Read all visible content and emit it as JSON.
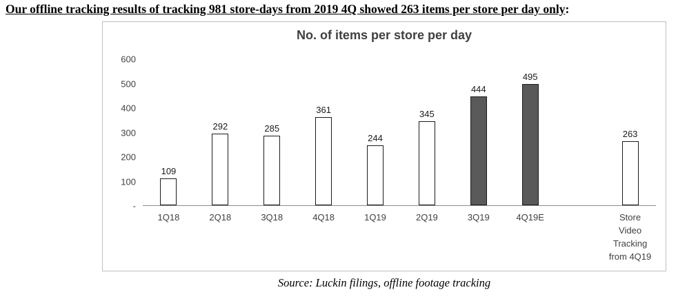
{
  "heading": "Our offline tracking results of tracking 981 store-days from 2019 4Q showed 263 items per store per day only",
  "heading_suffix": ":",
  "source": "Source: Luckin filings, offline footage tracking",
  "chart_data": {
    "type": "bar",
    "title": "No. of items per store per day",
    "categories": [
      "1Q18",
      "2Q18",
      "3Q18",
      "4Q18",
      "1Q19",
      "2Q19",
      "3Q19",
      "4Q19E",
      "Store Video Tracking from 4Q19"
    ],
    "values": [
      109,
      292,
      285,
      361,
      244,
      345,
      444,
      495,
      263
    ],
    "bar_styles": [
      "light",
      "light",
      "light",
      "light",
      "light",
      "light",
      "dark",
      "dark",
      "light"
    ],
    "xlabel": "",
    "ylabel": "",
    "ylim": [
      0,
      600
    ],
    "yticks": [
      "600",
      "500",
      "400",
      "300",
      "200",
      "100",
      "-"
    ],
    "grid": false,
    "legend": "none",
    "layout": {
      "gap_before_index": 8
    },
    "colors": {
      "light_fill": "#ffffff",
      "dark_fill": "#595959",
      "bar_border": "#1a1a1a",
      "title_color": "#404040",
      "axis_line": "#8c8c8c"
    }
  }
}
